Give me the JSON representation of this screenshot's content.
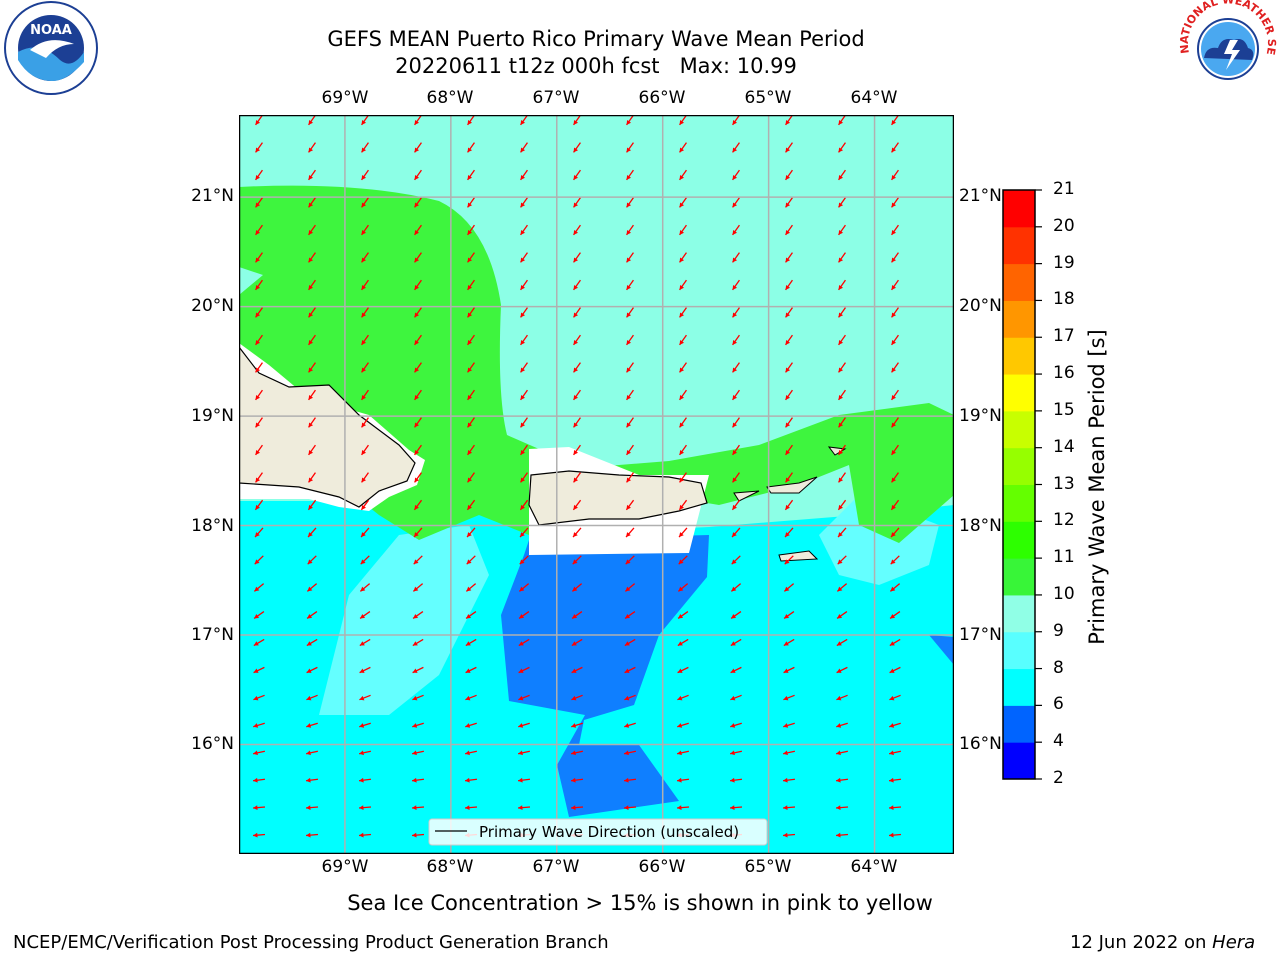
{
  "header": {
    "title_line1": "GEFS MEAN Puerto Rico Primary Wave Mean Period",
    "title_line2": "20220611 t12z 000h fcst   Max: 10.99"
  },
  "logos": {
    "noaa": "NOAA",
    "nws": "NATIONAL WEATHER SERVICE"
  },
  "map": {
    "lon_labels": [
      "69°W",
      "68°W",
      "67°W",
      "66°W",
      "65°W",
      "64°W"
    ],
    "lat_labels": [
      "21°N",
      "20°N",
      "19°N",
      "18°N",
      "17°N",
      "16°N"
    ],
    "lon_range": [
      -70,
      -63.25
    ],
    "lat_range": [
      15,
      21.75
    ],
    "legend_label": "Primary Wave Direction (unscaled)"
  },
  "colorbar": {
    "title": "Primary Wave Mean Period [s]",
    "ticks": [
      "2",
      "4",
      "6",
      "8",
      "9",
      "10",
      "11",
      "12",
      "13",
      "14",
      "15",
      "16",
      "17",
      "18",
      "19",
      "20",
      "21"
    ],
    "colors": [
      "#0000ff",
      "#0064ff",
      "#00ffff",
      "#58ffff",
      "#90ffe6",
      "#38f538",
      "#2dff00",
      "#64ff00",
      "#96ff00",
      "#c8ff00",
      "#ffff00",
      "#ffc800",
      "#ff9600",
      "#ff6400",
      "#ff3200",
      "#ff0000"
    ]
  },
  "colors": {
    "ocean_10": "#8cffe6",
    "ocean_11": "#3ef53e",
    "ocean_9": "#64ffff",
    "ocean_8": "#00ffff",
    "ocean_6": "#0f7fff",
    "land": "#efecdc",
    "arrow": "#ff0000",
    "grid": "#b0b0b0"
  },
  "footer": {
    "subtitle": "Sea Ice Concentration > 15% is shown in pink to yellow",
    "credit": "NCEP/EMC/Verification Post Processing Product Generation Branch",
    "date": "12 Jun 2022 on ",
    "host": "Hera"
  }
}
